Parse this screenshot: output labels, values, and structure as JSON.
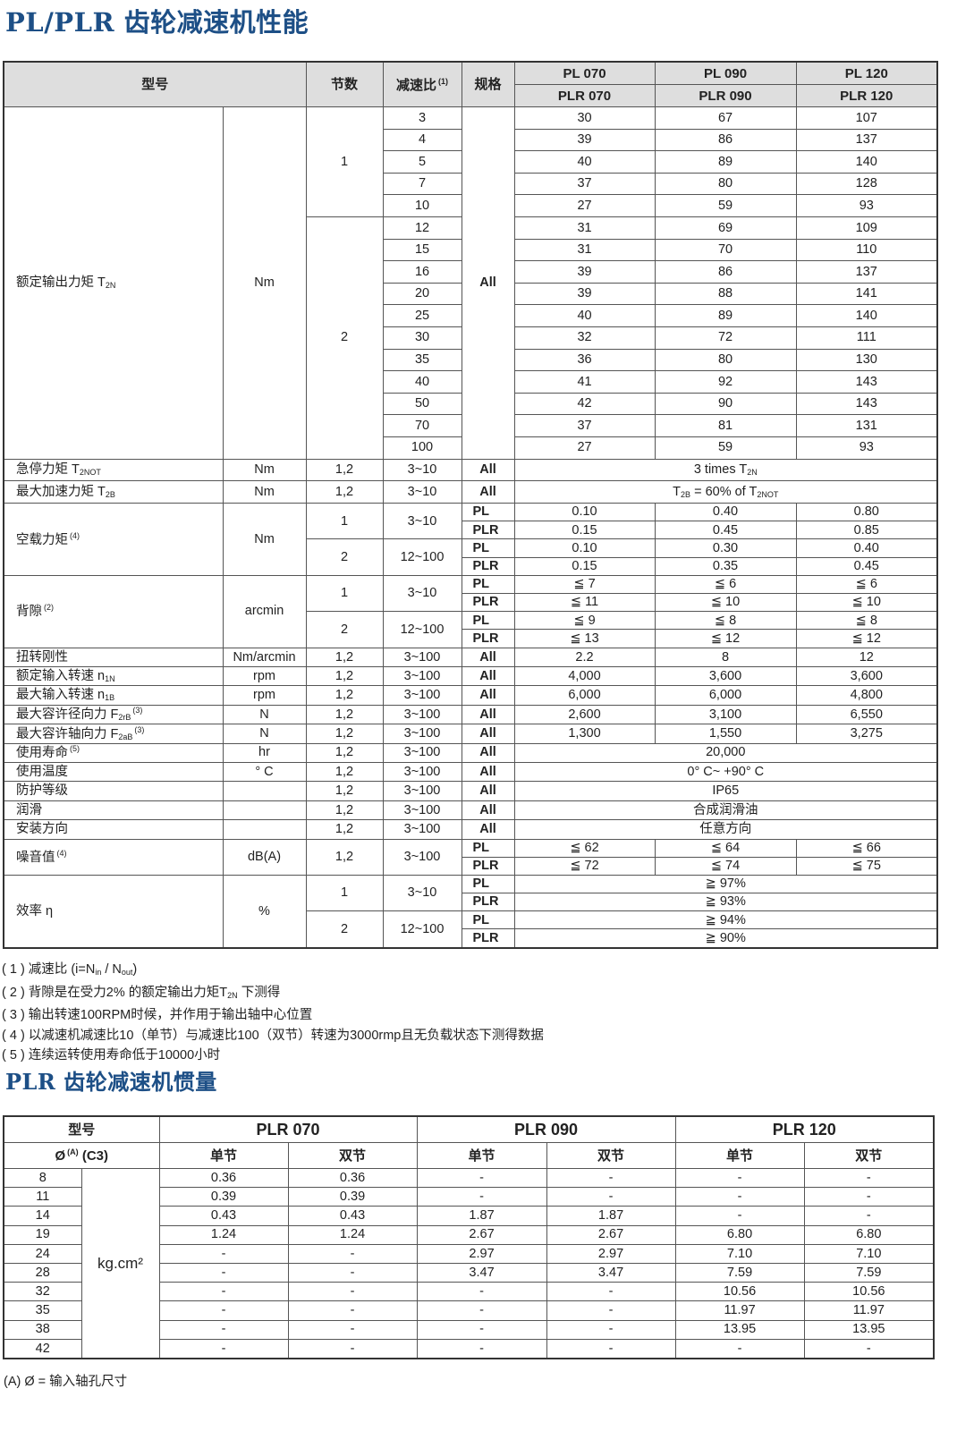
{
  "perf": {
    "title": "PL/PLR 齿轮减速机性能",
    "header": {
      "model": "型号",
      "stages": "节数",
      "ratio": "减速比",
      "ratio_note": "(1)",
      "spec": "规格",
      "models_pl": [
        "PL  070",
        "PL 090",
        "PL 120"
      ],
      "models_plr": [
        "PLR 070",
        "PLR 090",
        "PLR 120"
      ]
    },
    "rated_torque": {
      "label": [
        "额定输出力矩 T",
        {
          "sub": "2N"
        }
      ],
      "unit": "Nm",
      "spec": "All",
      "groups": [
        {
          "stage": "1",
          "rows": [
            [
              "3",
              "30",
              "67",
              "107"
            ],
            [
              "4",
              "39",
              "86",
              "137"
            ],
            [
              "5",
              "40",
              "89",
              "140"
            ],
            [
              "7",
              "37",
              "80",
              "128"
            ],
            [
              "10",
              "27",
              "59",
              "93"
            ]
          ]
        },
        {
          "stage": "2",
          "rows": [
            [
              "12",
              "31",
              "69",
              "109"
            ],
            [
              "15",
              "31",
              "70",
              "110"
            ],
            [
              "16",
              "39",
              "86",
              "137"
            ],
            [
              "20",
              "39",
              "88",
              "141"
            ],
            [
              "25",
              "40",
              "89",
              "140"
            ],
            [
              "30",
              "32",
              "72",
              "111"
            ],
            [
              "35",
              "36",
              "80",
              "130"
            ],
            [
              "40",
              "41",
              "92",
              "143"
            ],
            [
              "50",
              "42",
              "90",
              "143"
            ],
            [
              "70",
              "37",
              "81",
              "131"
            ],
            [
              "100",
              "27",
              "59",
              "93"
            ]
          ]
        }
      ]
    },
    "sections": [
      {
        "label": [
          "急停力矩 T",
          {
            "sub": "2NOT"
          }
        ],
        "unit": "Nm",
        "stages": [
          {
            "stage": "1,2",
            "ratio": "3~10",
            "variants": [
              {
                "spec": "All",
                "values": [
                  [
                    "3 times T",
                    {
                      "sub": "2N"
                    }
                  ]
                ]
              }
            ]
          }
        ]
      },
      {
        "label": [
          "最大加速力矩 T",
          {
            "sub": "2B"
          }
        ],
        "unit": "Nm",
        "stages": [
          {
            "stage": "1,2",
            "ratio": "3~10",
            "variants": [
              {
                "spec": "All",
                "values": [
                  [
                    "T",
                    {
                      "sub": "2B"
                    },
                    " = 60% of T",
                    {
                      "sub": "2NOT"
                    }
                  ]
                ]
              }
            ]
          }
        ]
      },
      {
        "label": [
          "空载力矩"
        ],
        "note": "(4)",
        "unit": "Nm",
        "stages": [
          {
            "stage": "1",
            "ratio": "3~10",
            "variants": [
              {
                "spec": "PL",
                "values": [
                  "0.10",
                  "0.40",
                  "0.80"
                ]
              },
              {
                "spec": "PLR",
                "values": [
                  "0.15",
                  "0.45",
                  "0.85"
                ]
              }
            ]
          },
          {
            "stage": "2",
            "ratio": "12~100",
            "variants": [
              {
                "spec": "PL",
                "values": [
                  "0.10",
                  "0.30",
                  "0.40"
                ]
              },
              {
                "spec": "PLR",
                "values": [
                  "0.15",
                  "0.35",
                  "0.45"
                ]
              }
            ]
          }
        ]
      },
      {
        "label": [
          "背隙"
        ],
        "note": "(2)",
        "unit": "arcmin",
        "stages": [
          {
            "stage": "1",
            "ratio": "3~10",
            "variants": [
              {
                "spec": "PL",
                "values": [
                  "≦ 7",
                  "≦ 6",
                  "≦ 6"
                ]
              },
              {
                "spec": "PLR",
                "values": [
                  "≦ 11",
                  "≦ 10",
                  "≦ 10"
                ]
              }
            ]
          },
          {
            "stage": "2",
            "ratio": "12~100",
            "variants": [
              {
                "spec": "PL",
                "values": [
                  "≦ 9",
                  "≦ 8",
                  "≦ 8"
                ]
              },
              {
                "spec": "PLR",
                "values": [
                  "≦ 13",
                  "≦ 12",
                  "≦ 12"
                ]
              }
            ]
          }
        ]
      },
      {
        "label": [
          "扭转刚性"
        ],
        "unit": "Nm/arcmin",
        "stages": [
          {
            "stage": "1,2",
            "ratio": "3~100",
            "variants": [
              {
                "spec": "All",
                "values": [
                  "2.2",
                  "8",
                  "12"
                ]
              }
            ]
          }
        ]
      },
      {
        "label": [
          "额定输入转速 n",
          {
            "sub": "1N"
          }
        ],
        "unit": "rpm",
        "stages": [
          {
            "stage": "1,2",
            "ratio": "3~100",
            "variants": [
              {
                "spec": "All",
                "values": [
                  "4,000",
                  "3,600",
                  "3,600"
                ]
              }
            ]
          }
        ]
      },
      {
        "label": [
          "最大输入转速 n",
          {
            "sub": "1B"
          }
        ],
        "unit": "rpm",
        "stages": [
          {
            "stage": "1,2",
            "ratio": "3~100",
            "variants": [
              {
                "spec": "All",
                "values": [
                  "6,000",
                  "6,000",
                  "4,800"
                ]
              }
            ]
          }
        ]
      },
      {
        "label": [
          "最大容许径向力 F",
          {
            "sub": "2rB"
          }
        ],
        "note": "(3)",
        "unit": "N",
        "stages": [
          {
            "stage": "1,2",
            "ratio": "3~100",
            "variants": [
              {
                "spec": "All",
                "values": [
                  "2,600",
                  "3,100",
                  "6,550"
                ]
              }
            ]
          }
        ]
      },
      {
        "label": [
          "最大容许轴向力 F",
          {
            "sub": "2aB"
          }
        ],
        "note": "(3)",
        "unit": "N",
        "stages": [
          {
            "stage": "1,2",
            "ratio": "3~100",
            "variants": [
              {
                "spec": "All",
                "values": [
                  "1,300",
                  "1,550",
                  "3,275"
                ]
              }
            ]
          }
        ]
      },
      {
        "label": [
          "使用寿命"
        ],
        "note": "(5)",
        "unit": "hr",
        "stages": [
          {
            "stage": "1,2",
            "ratio": "3~100",
            "variants": [
              {
                "spec": "All",
                "values": [
                  "20,000"
                ]
              }
            ]
          }
        ]
      },
      {
        "label": [
          "使用温度"
        ],
        "unit": "° C",
        "stages": [
          {
            "stage": "1,2",
            "ratio": "3~100",
            "variants": [
              {
                "spec": "All",
                "values": [
                  "0° C~ +90° C"
                ]
              }
            ]
          }
        ]
      },
      {
        "label": [
          "防护等级"
        ],
        "unit": "",
        "stages": [
          {
            "stage": "1,2",
            "ratio": "3~100",
            "variants": [
              {
                "spec": "All",
                "values": [
                  "IP65"
                ]
              }
            ]
          }
        ]
      },
      {
        "label": [
          "润滑"
        ],
        "unit": "",
        "stages": [
          {
            "stage": "1,2",
            "ratio": "3~100",
            "variants": [
              {
                "spec": "All",
                "values": [
                  "合成润滑油"
                ]
              }
            ]
          }
        ]
      },
      {
        "label": [
          "安装方向"
        ],
        "unit": "",
        "stages": [
          {
            "stage": "1,2",
            "ratio": "3~100",
            "variants": [
              {
                "spec": "All",
                "values": [
                  "任意方向"
                ]
              }
            ]
          }
        ]
      },
      {
        "label": [
          "噪音值"
        ],
        "note": "(4)",
        "unit": "dB(A)",
        "stages": [
          {
            "stage": "1,2",
            "ratio": "3~100",
            "variants": [
              {
                "spec": "PL",
                "values": [
                  "≦ 62",
                  "≦ 64",
                  "≦ 66"
                ]
              },
              {
                "spec": "PLR",
                "values": [
                  "≦ 72",
                  "≦ 74",
                  "≦ 75"
                ]
              }
            ]
          }
        ]
      },
      {
        "label": [
          "效率 η"
        ],
        "unit": "%",
        "stages": [
          {
            "stage": "1",
            "ratio": "3~10",
            "variants": [
              {
                "spec": "PL",
                "values": [
                  "≧ 97%"
                ]
              },
              {
                "spec": "PLR",
                "values": [
                  "≧ 93%"
                ]
              }
            ]
          },
          {
            "stage": "2",
            "ratio": "12~100",
            "variants": [
              {
                "spec": "PL",
                "values": [
                  "≧ 94%"
                ]
              },
              {
                "spec": "PLR",
                "values": [
                  "≧ 90%"
                ]
              }
            ]
          }
        ]
      }
    ],
    "footnotes": [
      [
        "( 1 ) 减速比 (i=N",
        {
          "sub": "in"
        },
        " / N",
        {
          "sub": "out"
        },
        ")"
      ],
      [
        "( 2 ) 背隙是在受力2% 的额定输出力矩T",
        {
          "sub": "2N"
        },
        " 下测得"
      ],
      [
        "( 3 ) 输出转速100RPM时候，并作用于输出轴中心位置"
      ],
      [
        "( 4 ) 以减速机减速比10（单节）与减速比100（双节）转速为3000rmp且无负载状态下测得数据"
      ],
      [
        "( 5 ) 连续运转使用寿命低于10000小时"
      ]
    ]
  },
  "inertia": {
    "title": "PLR 齿轮减速机惯量",
    "header": {
      "model": "型号",
      "bore": "Ø",
      "bore_note": "(A)",
      "code": "(C3)",
      "models": [
        "PLR 070",
        "PLR 090",
        "PLR 120"
      ],
      "single": "单节",
      "double": "双节"
    },
    "unit": "kg.cm²",
    "rows": [
      [
        "8",
        "0.36",
        "0.36",
        "-",
        "-",
        "-",
        "-"
      ],
      [
        "11",
        "0.39",
        "0.39",
        "-",
        "-",
        "-",
        "-"
      ],
      [
        "14",
        "0.43",
        "0.43",
        "1.87",
        "1.87",
        "-",
        "-"
      ],
      [
        "19",
        "1.24",
        "1.24",
        "2.67",
        "2.67",
        "6.80",
        "6.80"
      ],
      [
        "24",
        "-",
        "-",
        "2.97",
        "2.97",
        "7.10",
        "7.10"
      ],
      [
        "28",
        "-",
        "-",
        "3.47",
        "3.47",
        "7.59",
        "7.59"
      ],
      [
        "32",
        "-",
        "-",
        "-",
        "-",
        "10.56",
        "10.56"
      ],
      [
        "35",
        "-",
        "-",
        "-",
        "-",
        "11.97",
        "11.97"
      ],
      [
        "38",
        "-",
        "-",
        "-",
        "-",
        "13.95",
        "13.95"
      ],
      [
        "42",
        "-",
        "-",
        "-",
        "-",
        "-",
        "-"
      ]
    ],
    "footnote": "(A)  Ø = 输入轴孔尺寸"
  }
}
